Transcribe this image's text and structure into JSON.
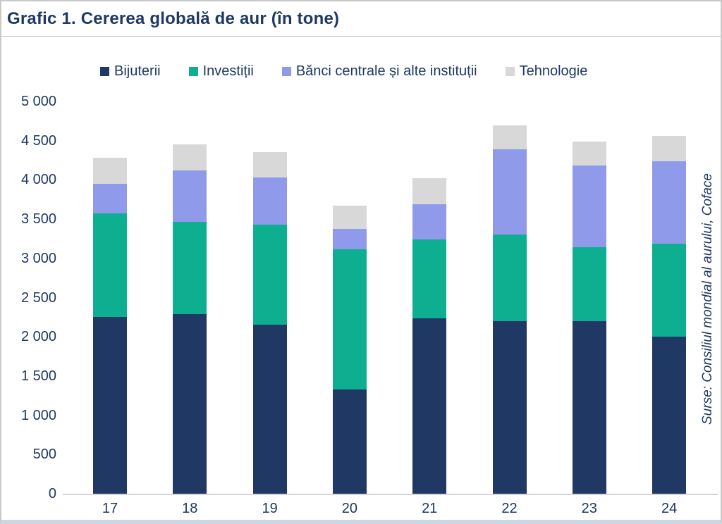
{
  "source_note": "Surse: Consiliul mondial al aurului, Coface",
  "colors": {
    "text_navy": "#1F3864",
    "axis_line": "#D6D6D6",
    "frame_border": "#C9C9C9",
    "frame_bottom_band": "#CBD8E3"
  },
  "chart_data": {
    "type": "bar",
    "stacked": true,
    "title": "Grafic 1. Cererea globală de aur (în tone)",
    "unit": "tone",
    "categories": [
      "17",
      "18",
      "19",
      "20",
      "21",
      "22",
      "23",
      "24"
    ],
    "series": [
      {
        "name": "Bijuterii",
        "color": "#1F3864",
        "values": [
          2257,
          2290,
          2152,
          1327,
          2231,
          2195,
          2195,
          2004
        ]
      },
      {
        "name": "Investiții",
        "color": "#0EAE90",
        "values": [
          1315,
          1173,
          1274,
          1790,
          1007,
          1113,
          950,
          1185
        ]
      },
      {
        "name": "Bănci centrale și alte instituții",
        "color": "#8F9AEB",
        "values": [
          375,
          656,
          605,
          255,
          450,
          1082,
          1040,
          1045
        ]
      },
      {
        "name": "Tehnologie",
        "color": "#D8D8D8",
        "values": [
          333,
          335,
          326,
          302,
          330,
          309,
          305,
          325
        ]
      }
    ],
    "totals": [
      4280,
      4454,
      4357,
      3674,
      4018,
      4699,
      4490,
      4559
    ],
    "ylim": [
      0,
      5000
    ],
    "ytick_step": 500,
    "ytick_labels": [
      "0",
      "500",
      "1 000",
      "1 500",
      "2 000",
      "2 500",
      "3 000",
      "3 500",
      "4 000",
      "4 500",
      "5 000"
    ],
    "legend_position": "top",
    "gridlines": false
  }
}
